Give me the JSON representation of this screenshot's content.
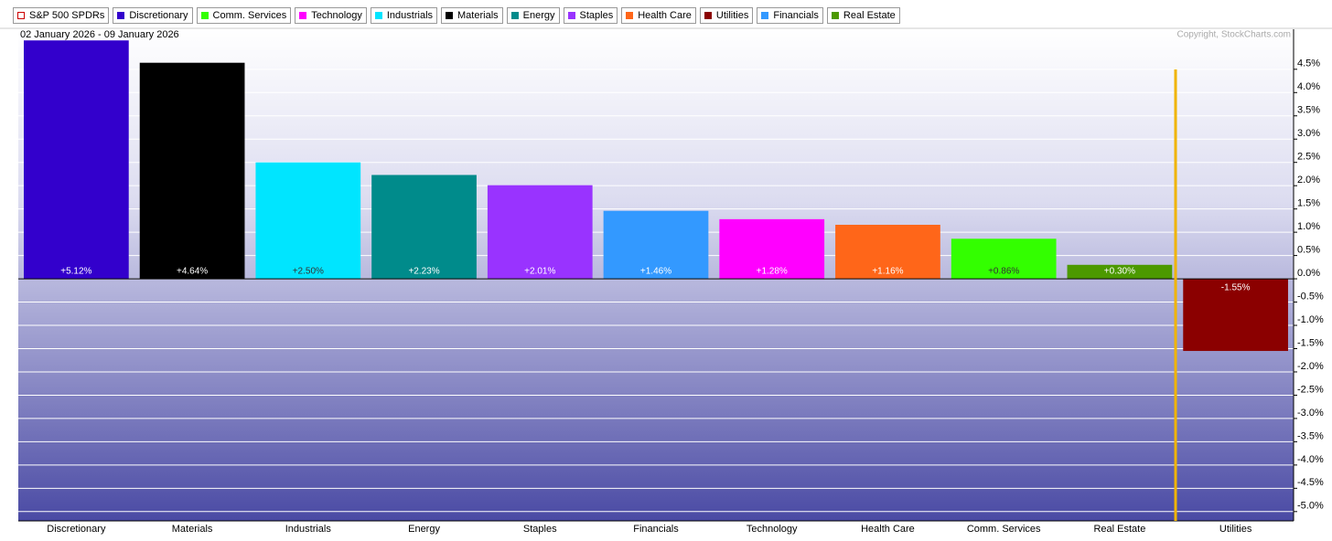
{
  "chart_data": {
    "type": "bar",
    "title": "02 January 2026 - 09 January 2026",
    "copyright": "Copyright, StockCharts.com",
    "legend": [
      {
        "name": "S&P 500 SPDRs",
        "color": "#cc0000"
      },
      {
        "name": "Discretionary",
        "color": "#3300cc"
      },
      {
        "name": "Comm. Services",
        "color": "#33ff00"
      },
      {
        "name": "Technology",
        "color": "#ff00ff"
      },
      {
        "name": "Industrials",
        "color": "#00e5ff"
      },
      {
        "name": "Materials",
        "color": "#000000"
      },
      {
        "name": "Energy",
        "color": "#008b8b"
      },
      {
        "name": "Staples",
        "color": "#9933ff"
      },
      {
        "name": "Health Care",
        "color": "#ff6619"
      },
      {
        "name": "Utilities",
        "color": "#8b0000"
      },
      {
        "name": "Financials",
        "color": "#3399ff"
      },
      {
        "name": "Real Estate",
        "color": "#4c9900"
      }
    ],
    "categories": [
      "Discretionary",
      "Materials",
      "Industrials",
      "Energy",
      "Staples",
      "Financials",
      "Technology",
      "Health Care",
      "Comm. Services",
      "Real Estate",
      "Utilities"
    ],
    "values": [
      5.12,
      4.64,
      2.5,
      2.23,
      2.01,
      1.46,
      1.28,
      1.16,
      0.86,
      0.3,
      -1.55
    ],
    "value_labels": [
      "+5.12%",
      "+4.64%",
      "+2.50%",
      "+2.23%",
      "+2.01%",
      "+1.46%",
      "+1.28%",
      "+1.16%",
      "+0.86%",
      "+0.30%",
      "-1.55%"
    ],
    "ylim": [
      -5.2,
      5.36
    ],
    "yticks": [
      {
        "value": 4.5,
        "label": "4.5%"
      },
      {
        "value": 4.0,
        "label": "4.0%"
      },
      {
        "value": 3.5,
        "label": "3.5%"
      },
      {
        "value": 3.0,
        "label": "3.0%"
      },
      {
        "value": 2.5,
        "label": "2.5%"
      },
      {
        "value": 2.0,
        "label": "2.0%"
      },
      {
        "value": 1.5,
        "label": "1.5%"
      },
      {
        "value": 1.0,
        "label": "1.0%"
      },
      {
        "value": 0.5,
        "label": "0.5%"
      },
      {
        "value": 0.0,
        "label": "0.0%"
      },
      {
        "value": -0.5,
        "label": "-0.5%"
      },
      {
        "value": -1.0,
        "label": "-1.0%"
      },
      {
        "value": -1.5,
        "label": "-1.5%"
      },
      {
        "value": -2.0,
        "label": "-2.0%"
      },
      {
        "value": -2.5,
        "label": "-2.5%"
      },
      {
        "value": -3.0,
        "label": "-3.0%"
      },
      {
        "value": -3.5,
        "label": "-3.5%"
      },
      {
        "value": -4.0,
        "label": "-4.0%"
      },
      {
        "value": -4.5,
        "label": "-4.5%"
      },
      {
        "value": -5.0,
        "label": "-5.0%"
      }
    ],
    "grid": true
  }
}
